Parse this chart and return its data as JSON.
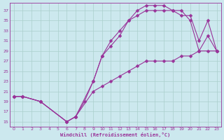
{
  "xlabel": "Windchill (Refroidissement éolien,°C)",
  "bg_color": "#cce8ee",
  "grid_color": "#aacfcc",
  "line_color": "#993399",
  "markersize": 2.5,
  "linewidth": 0.8,
  "xlim": [
    -0.5,
    23.5
  ],
  "ylim": [
    14,
    38.5
  ],
  "xticks": [
    0,
    1,
    2,
    3,
    4,
    5,
    6,
    7,
    8,
    9,
    10,
    11,
    12,
    13,
    14,
    15,
    16,
    17,
    18,
    19,
    20,
    21,
    22,
    23
  ],
  "yticks": [
    15,
    17,
    19,
    21,
    23,
    25,
    27,
    29,
    31,
    33,
    35,
    37
  ],
  "figsize": [
    3.2,
    2.0
  ],
  "dpi": 100,
  "series": [
    {
      "x": [
        0,
        1,
        3,
        6,
        7,
        9,
        10,
        11,
        12,
        13,
        14,
        15,
        16,
        17,
        18,
        19,
        20,
        21,
        22,
        23
      ],
      "y": [
        20,
        20,
        19,
        15,
        16,
        23,
        28,
        31,
        33,
        35,
        36,
        37,
        37,
        37,
        37,
        37,
        35,
        29,
        32,
        29
      ]
    },
    {
      "x": [
        0,
        1,
        3,
        6,
        7,
        8,
        9,
        10,
        11,
        12,
        13,
        14,
        15,
        16,
        17,
        18,
        19,
        20,
        21,
        22,
        23
      ],
      "y": [
        20,
        20,
        19,
        15,
        16,
        19,
        23,
        28,
        30,
        32,
        35,
        37,
        38,
        38,
        38,
        37,
        36,
        36,
        31,
        35,
        29
      ]
    },
    {
      "x": [
        0,
        1,
        3,
        6,
        7,
        9,
        10,
        11,
        12,
        13,
        14,
        15,
        16,
        17,
        18,
        19,
        20,
        21,
        22,
        23
      ],
      "y": [
        20,
        20,
        19,
        15,
        16,
        21,
        22,
        23,
        24,
        25,
        26,
        27,
        27,
        27,
        27,
        28,
        28,
        29,
        29,
        29
      ]
    }
  ]
}
